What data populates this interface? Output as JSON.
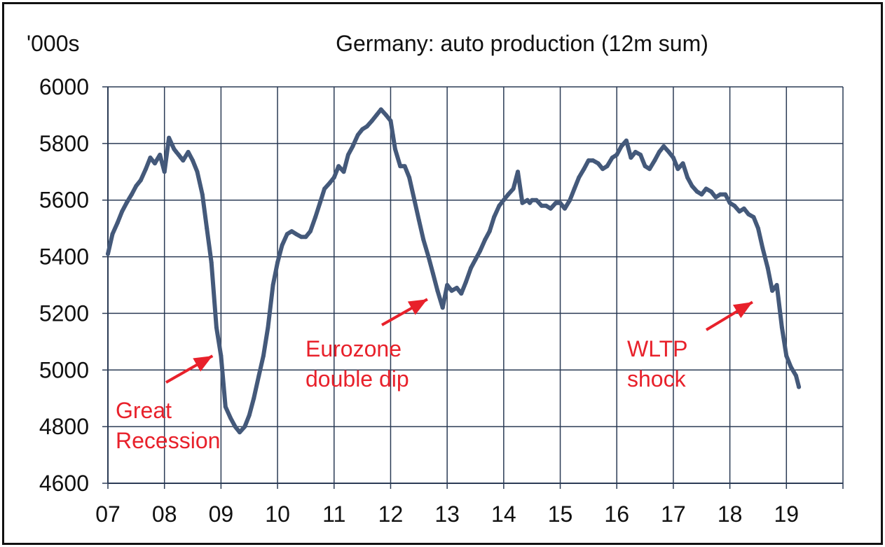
{
  "chart_data": {
    "type": "line",
    "title": "Germany: auto production (12m sum)",
    "ylabel": "'000s",
    "xlabel": "",
    "ylim": [
      4600,
      6000
    ],
    "xlim": [
      2007,
      2020
    ],
    "grid": true,
    "y_ticks": [
      "6000",
      "5800",
      "5600",
      "5400",
      "5200",
      "5000",
      "4800",
      "4600"
    ],
    "x_ticks": [
      "07",
      "08",
      "09",
      "10",
      "11",
      "12",
      "13",
      "14",
      "15",
      "16",
      "17",
      "18",
      "19"
    ],
    "line_color": "#44597a",
    "annotation_color": "#e8212b",
    "annotations": [
      {
        "lines": [
          "Great",
          "Recession"
        ],
        "target_x": 2008.85,
        "target_y": 5050
      },
      {
        "lines": [
          "Eurozone",
          "double dip"
        ],
        "target_x": 2012.65,
        "target_y": 5250
      },
      {
        "lines": [
          "WLTP",
          "shock"
        ],
        "target_x": 2018.4,
        "target_y": 5240
      }
    ],
    "series": [
      {
        "x": [
          2007.0,
          2007.08,
          2007.17,
          2007.25,
          2007.33,
          2007.42,
          2007.5,
          2007.58,
          2007.67,
          2007.75,
          2007.83,
          2007.92,
          2008.0,
          2008.08,
          2008.17,
          2008.21,
          2008.25,
          2008.29,
          2008.33,
          2008.42,
          2008.5,
          2008.58,
          2008.67,
          2008.75,
          2008.83,
          2008.92,
          2009.0,
          2009.08,
          2009.17,
          2009.25,
          2009.33,
          2009.42,
          2009.5,
          2009.58,
          2009.67,
          2009.75,
          2009.83,
          2009.92,
          2010.0,
          2010.08,
          2010.17,
          2010.25,
          2010.33,
          2010.42,
          2010.5,
          2010.58,
          2010.67,
          2010.75,
          2010.83,
          2010.92,
          2011.0,
          2011.08,
          2011.17,
          2011.25,
          2011.33,
          2011.42,
          2011.5,
          2011.58,
          2011.67,
          2011.75,
          2011.83,
          2011.92,
          2012.0,
          2012.04,
          2012.08,
          2012.17,
          2012.25,
          2012.33,
          2012.42,
          2012.5,
          2012.58,
          2012.67,
          2012.75,
          2012.83,
          2012.92,
          2013.0,
          2013.08,
          2013.17,
          2013.25,
          2013.33,
          2013.42,
          2013.5,
          2013.58,
          2013.67,
          2013.75,
          2013.83,
          2013.92,
          2014.0,
          2014.08,
          2014.17,
          2014.25,
          2014.33,
          2014.42,
          2014.46,
          2014.5,
          2014.58,
          2014.67,
          2014.75,
          2014.83,
          2014.92,
          2015.0,
          2015.08,
          2015.17,
          2015.25,
          2015.33,
          2015.42,
          2015.5,
          2015.58,
          2015.67,
          2015.75,
          2015.83,
          2015.92,
          2016.0,
          2016.08,
          2016.17,
          2016.25,
          2016.33,
          2016.42,
          2016.46,
          2016.5,
          2016.58,
          2016.67,
          2016.75,
          2016.83,
          2016.92,
          2017.0,
          2017.08,
          2017.17,
          2017.25,
          2017.33,
          2017.42,
          2017.5,
          2017.58,
          2017.67,
          2017.75,
          2017.83,
          2017.92,
          2018.0,
          2018.08,
          2018.17,
          2018.25,
          2018.33,
          2018.42,
          2018.5,
          2018.58,
          2018.67,
          2018.75,
          2018.83,
          2018.92,
          2019.0,
          2019.08,
          2019.17,
          2019.22
        ],
        "values": [
          5410,
          5480,
          5520,
          5560,
          5590,
          5620,
          5650,
          5670,
          5710,
          5750,
          5730,
          5760,
          5700,
          5820,
          5780,
          5770,
          5760,
          5750,
          5740,
          5770,
          5740,
          5700,
          5620,
          5500,
          5380,
          5150,
          5050,
          4870,
          4830,
          4800,
          4780,
          4800,
          4840,
          4900,
          4980,
          5050,
          5150,
          5300,
          5380,
          5440,
          5480,
          5490,
          5480,
          5470,
          5470,
          5490,
          5540,
          5590,
          5640,
          5660,
          5680,
          5720,
          5700,
          5760,
          5790,
          5830,
          5850,
          5860,
          5880,
          5900,
          5920,
          5900,
          5880,
          5830,
          5780,
          5720,
          5720,
          5680,
          5600,
          5530,
          5460,
          5400,
          5340,
          5280,
          5220,
          5300,
          5280,
          5290,
          5270,
          5310,
          5360,
          5390,
          5420,
          5460,
          5490,
          5540,
          5580,
          5600,
          5620,
          5640,
          5700,
          5590,
          5600,
          5590,
          5600,
          5600,
          5580,
          5580,
          5570,
          5590,
          5590,
          5570,
          5600,
          5640,
          5680,
          5710,
          5740,
          5740,
          5730,
          5710,
          5720,
          5750,
          5760,
          5790,
          5810,
          5750,
          5770,
          5760,
          5740,
          5720,
          5710,
          5740,
          5770,
          5790,
          5770,
          5750,
          5710,
          5730,
          5680,
          5650,
          5630,
          5620,
          5640,
          5630,
          5610,
          5620,
          5620,
          5590,
          5580,
          5560,
          5570,
          5550,
          5540,
          5500,
          5430,
          5360,
          5280,
          5300,
          5150,
          5050,
          5010,
          4980,
          4940
        ]
      }
    ]
  }
}
